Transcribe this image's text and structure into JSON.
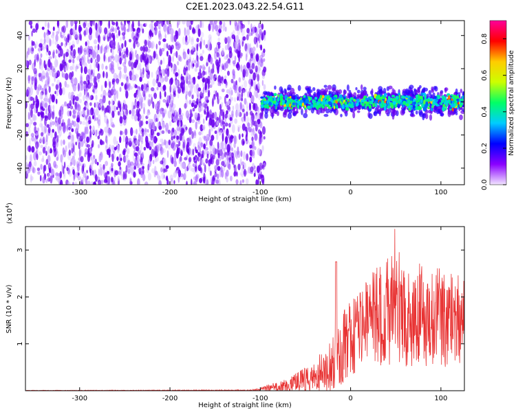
{
  "title": "C2E1.2023.043.22.54.G11",
  "chart_data": [
    {
      "type": "heatmap",
      "xlabel": "Height of straight line (km)",
      "ylabel": "Frequency (Hz)",
      "xlim": [
        -360,
        126
      ],
      "ylim": [
        -50,
        49
      ],
      "xticks": [
        -300,
        -200,
        -100,
        0,
        100
      ],
      "yticks": [
        -40,
        -20,
        0,
        20,
        40
      ],
      "noise_region": {
        "x": [
          -360,
          -95
        ],
        "y": [
          -50,
          49
        ],
        "amplitude_range": [
          0.0,
          0.15
        ]
      },
      "signal_band": {
        "x": [
          -98,
          126
        ],
        "center": 0,
        "half_width": 8,
        "amplitude_range": [
          0.1,
          0.9
        ]
      },
      "colorbar": {
        "label": "Normalized spectral amplitude",
        "range": [
          0.0,
          0.9
        ],
        "ticks": [
          0.0,
          0.2,
          0.4,
          0.6,
          0.8
        ],
        "colormap": [
          "#f2e6ff",
          "#8a00ff",
          "#0000ff",
          "#00ccff",
          "#00ff66",
          "#ccff00",
          "#ffcc00",
          "#ff0000",
          "#ff0099"
        ]
      }
    },
    {
      "type": "line",
      "xlabel": "Height of straight line (km)",
      "ylabel": "SNR (10 * v/v)",
      "scale_label": "(x10",
      "scale_exp": "4",
      "scale_close": ")",
      "xlim": [
        -360,
        126
      ],
      "ylim": [
        0,
        3.5
      ],
      "xticks": [
        -300,
        -200,
        -100,
        0,
        100
      ],
      "yticks": [
        1,
        2,
        3
      ],
      "color": "#e83232",
      "profile": [
        {
          "x": -360,
          "mean": 0.005,
          "spread": 0.005
        },
        {
          "x": -110,
          "mean": 0.01,
          "spread": 0.01
        },
        {
          "x": -70,
          "mean": 0.12,
          "spread": 0.15
        },
        {
          "x": -40,
          "mean": 0.3,
          "spread": 0.35
        },
        {
          "x": -18,
          "mean": 0.6,
          "spread": 0.6
        },
        {
          "x": 0,
          "mean": 1.2,
          "spread": 0.9
        },
        {
          "x": 40,
          "mean": 1.7,
          "spread": 1.2
        },
        {
          "x": 80,
          "mean": 1.6,
          "spread": 1.1
        },
        {
          "x": 126,
          "mean": 1.5,
          "spread": 1.0
        }
      ]
    }
  ]
}
